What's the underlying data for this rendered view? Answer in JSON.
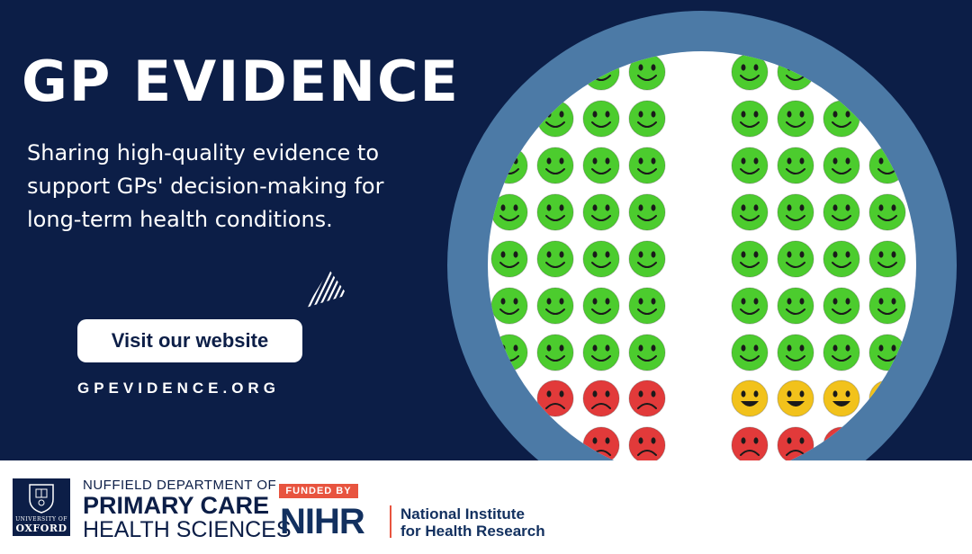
{
  "banner": {
    "title": "GP EVIDENCE",
    "tagline": [
      "Sharing high-quality evidence to",
      "support GPs' decision-making for",
      "long-term health conditions."
    ],
    "cta_label": "Visit our website",
    "url": "GPEVIDENCE.ORG"
  },
  "footer": {
    "oxford_logo": [
      "UNIVERSITY OF",
      "OXFORD"
    ],
    "department": [
      "NUFFIELD DEPARTMENT OF",
      "PRIMARY CARE",
      "HEALTH SCIENCES"
    ],
    "funded_by": "FUNDED BY",
    "nihr_acronym": "NIHR",
    "nihr_name": [
      "National Institute",
      "for Health Research"
    ]
  },
  "illustration": {
    "icons": [
      "smiley-face-icon",
      "neutral-face-icon",
      "sad-face-icon"
    ],
    "left_group": [
      "happy",
      "happy",
      "happy",
      "happy",
      "happy",
      "happy",
      "happy",
      "sad",
      "sad"
    ],
    "right_group": [
      "happy",
      "happy",
      "happy",
      "happy",
      "happy",
      "happy",
      "happy",
      "neutral",
      "sad"
    ]
  },
  "colors": {
    "navy": "#0c1e47",
    "ring": "#4c7aa6",
    "happy": "#4ccc2e",
    "neutral": "#f2c21b",
    "sad": "#e23a3a",
    "accent": "#e8543f"
  }
}
